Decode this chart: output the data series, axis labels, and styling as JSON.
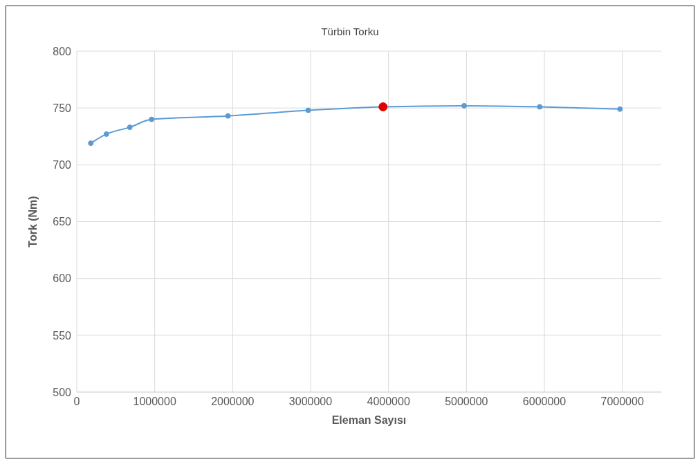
{
  "chart_data": {
    "type": "line",
    "title": "Türbin Torku",
    "xlabel": "Eleman Sayısı",
    "ylabel": "Tork (Nm)",
    "xlim": [
      0,
      7500000
    ],
    "xticks": [
      0,
      1000000,
      2000000,
      3000000,
      4000000,
      5000000,
      6000000,
      7000000
    ],
    "ylim": [
      500,
      800
    ],
    "yticks": [
      500,
      550,
      600,
      650,
      700,
      750,
      800
    ],
    "grid": true,
    "marker": "circle",
    "line_style": "solid",
    "legend": false,
    "series": [
      {
        "color": "#5b9bd5",
        "x": [
          180000,
          380000,
          680000,
          960000,
          1940000,
          2970000,
          3930000,
          4970000,
          5940000,
          6970000
        ],
        "values": [
          719,
          727,
          733,
          740,
          743,
          748,
          751,
          752,
          751,
          749
        ]
      },
      {
        "type": "scatter",
        "color": "#e00000",
        "x": [
          3930000
        ],
        "values": [
          751
        ]
      }
    ]
  }
}
